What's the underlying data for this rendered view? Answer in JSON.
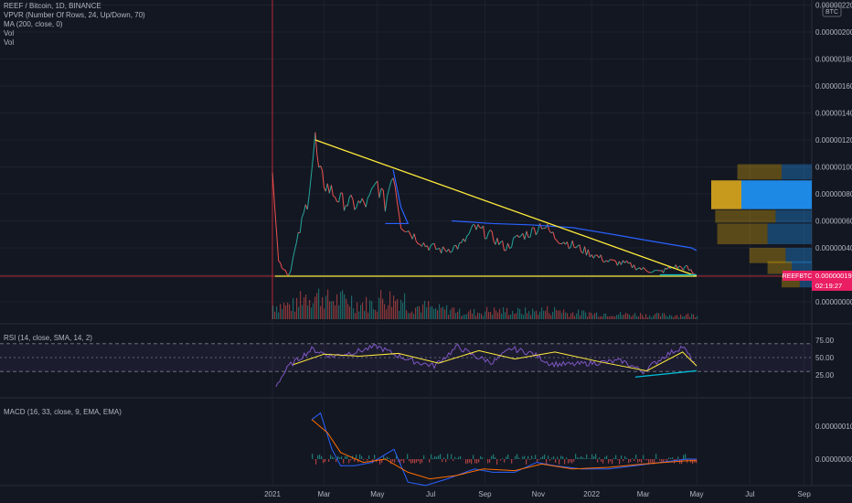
{
  "header": {
    "title": "REEF / Bitcoin, 1D, BINANCE",
    "indicators": [
      "VPVR (Number Of Rows, 24, Up/Down, 70)",
      "MA (200, close, 0)",
      "Vol",
      "Vol"
    ],
    "currency_badge": "BTC"
  },
  "price_panel": {
    "y_ticks": [
      "0.00000220",
      "0.00000200",
      "0.00000180",
      "0.00000160",
      "0.00000140",
      "0.00000120",
      "0.00000100",
      "0.00000080",
      "0.00000060",
      "0.00000040",
      "0.00000020",
      "0.00000000"
    ],
    "symbol_label": "REEFBTC",
    "last_price": "0.00000019",
    "countdown": "02:19:27"
  },
  "rsi_panel": {
    "label": "RSI (14, close, SMA, 14, 2)",
    "y_ticks": [
      "75.00",
      "50.00",
      "25.00"
    ]
  },
  "macd_panel": {
    "label": "MACD (16, 33, close, 9, EMA, EMA)",
    "y_ticks": [
      "0.00000010",
      "0.00000000"
    ]
  },
  "time_axis": {
    "labels": [
      "2021",
      "Mar",
      "May",
      "Jul",
      "Sep",
      "Nov",
      "2022",
      "Mar",
      "May",
      "Jul",
      "Sep"
    ]
  },
  "colors": {
    "background": "#131722",
    "grid": "#1e222d",
    "text": "#b2b5be",
    "up": "#26a69a",
    "down": "#ef5350",
    "trendline": "#ffeb3b",
    "ma": "#2962ff",
    "rsi": "#7e57c2",
    "rsi_ma": "#ffeb3b",
    "macd": "#2962ff",
    "signal": "#ff6d00",
    "divergence": "#00bcd4",
    "price_label": "#e91e63",
    "vpvr_poc_left": "#c79a1e",
    "vpvr_poc_right": "#1e88e5"
  },
  "chart_data": [
    {
      "type": "line",
      "title": "REEF / Bitcoin, 1D, BINANCE",
      "series": [
        {
          "name": "REEFBTC",
          "x": [
            "2021-01-01",
            "2021-01-08",
            "2021-01-20",
            "2021-02-10",
            "2021-02-19",
            "2021-02-23",
            "2021-03-05",
            "2021-03-20",
            "2021-04-05",
            "2021-04-20",
            "2021-05-01",
            "2021-05-10",
            "2021-05-19",
            "2021-05-28",
            "2021-06-10",
            "2021-06-25",
            "2021-07-15",
            "2021-08-05",
            "2021-08-20",
            "2021-09-05",
            "2021-09-25",
            "2021-10-10",
            "2021-10-25",
            "2021-11-05",
            "2021-11-20",
            "2021-12-10",
            "2021-12-30",
            "2022-01-20",
            "2022-02-10",
            "2022-03-01",
            "2022-03-20",
            "2022-04-05",
            "2022-04-20",
            "2022-05-01"
          ],
          "values": [
            1.05,
            0.3,
            0.2,
            0.75,
            1.2,
            0.95,
            0.85,
            0.75,
            0.72,
            0.73,
            0.88,
            0.72,
            0.98,
            0.58,
            0.5,
            0.42,
            0.38,
            0.42,
            0.55,
            0.5,
            0.4,
            0.48,
            0.52,
            0.58,
            0.48,
            0.42,
            0.36,
            0.3,
            0.28,
            0.24,
            0.22,
            0.26,
            0.25,
            0.19
          ]
        },
        {
          "name": "MA (200, close, 0)",
          "x": [
            "2021-07-25",
            "2021-09-10",
            "2021-10-25",
            "2021-12-10",
            "2022-01-25",
            "2022-03-10",
            "2022-04-25",
            "2022-05-01"
          ],
          "values": [
            0.6,
            0.58,
            0.57,
            0.55,
            0.5,
            0.45,
            0.4,
            0.38
          ]
        }
      ],
      "trendlines": [
        {
          "x": [
            "2021-02-19",
            "2022-05-01"
          ],
          "values": [
            1.2,
            0.19
          ]
        },
        {
          "x": [
            "2021-01-04",
            "2022-05-01"
          ],
          "values": [
            0.19,
            0.19
          ]
        }
      ],
      "ylim": [
        0,
        2.2
      ],
      "y_units": "1e-6 BTC"
    },
    {
      "type": "bar",
      "title": "Vol",
      "categories": [
        "2021-01",
        "2021-02",
        "2021-03",
        "2021-04",
        "2021-05",
        "2021-06",
        "2021-07",
        "2021-08",
        "2021-09",
        "2021-10",
        "2021-11",
        "2021-12",
        "2022-01",
        "2022-02",
        "2022-03",
        "2022-04"
      ],
      "values": [
        20,
        34,
        28,
        22,
        30,
        18,
        14,
        10,
        12,
        11,
        13,
        9,
        8,
        7,
        6,
        6
      ]
    },
    {
      "type": "bar",
      "title": "VPVR (Number Of Rows, 24, Up/Down, 70)",
      "series": [
        {
          "name": "up",
          "values": [
            0.0,
            0.22,
            0.15,
            0.3,
            0.25,
            0.18,
            0.12,
            0.09
          ]
        },
        {
          "name": "down",
          "values": [
            0.0,
            0.15,
            0.35,
            0.18,
            0.22,
            0.13,
            0.1,
            0.06
          ]
        }
      ],
      "categories": [
        "0.00000120",
        "0.00000100",
        "0.00000080",
        "0.00000060",
        "0.00000040",
        "0.00000020",
        "0.00000010",
        "0.00000000"
      ]
    },
    {
      "type": "line",
      "title": "RSI (14, close, SMA, 14, 2)",
      "series": [
        {
          "name": "RSI",
          "x": [
            "2021-01-05",
            "2021-01-20",
            "2021-02-15",
            "2021-03-10",
            "2021-04-05",
            "2021-05-01",
            "2021-05-20",
            "2021-06-10",
            "2021-07-05",
            "2021-08-01",
            "2021-08-20",
            "2021-09-10",
            "2021-10-01",
            "2021-10-25",
            "2021-11-15",
            "2021-12-10",
            "2022-01-10",
            "2022-02-05",
            "2022-03-01",
            "2022-03-25",
            "2022-04-15",
            "2022-05-01"
          ],
          "values": [
            10,
            38,
            62,
            52,
            58,
            66,
            55,
            45,
            38,
            66,
            52,
            43,
            63,
            56,
            41,
            40,
            43,
            45,
            30,
            52,
            66,
            37
          ]
        },
        {
          "name": "SMA",
          "x": [
            "2021-01-25",
            "2021-03-01",
            "2021-04-10",
            "2021-05-25",
            "2021-07-10",
            "2021-08-25",
            "2021-10-05",
            "2021-11-20",
            "2022-01-10",
            "2022-03-05",
            "2022-04-15",
            "2022-05-01"
          ],
          "values": [
            40,
            55,
            52,
            56,
            42,
            60,
            48,
            58,
            44,
            31,
            58,
            38
          ]
        }
      ],
      "divergence_line": {
        "x": [
          "2022-02-20",
          "2022-05-01"
        ],
        "values": [
          22,
          31
        ]
      },
      "ylim": [
        0,
        100
      ]
    },
    {
      "type": "line",
      "title": "MACD (16, 33, close, 9, EMA, EMA)",
      "series": [
        {
          "name": "MACD",
          "x": [
            "2021-02-15",
            "2021-02-25",
            "2021-03-10",
            "2021-03-20",
            "2021-04-05",
            "2021-04-25",
            "2021-05-20",
            "2021-06-05",
            "2021-06-25",
            "2021-07-20",
            "2021-08-20",
            "2021-09-10",
            "2021-10-05",
            "2021-10-30",
            "2021-11-20",
            "2021-12-20",
            "2022-01-20",
            "2022-02-20",
            "2022-03-20",
            "2022-04-20",
            "2022-05-01"
          ],
          "values": [
            0.12,
            0.14,
            0.03,
            -0.02,
            -0.02,
            -0.01,
            0.03,
            -0.07,
            -0.08,
            -0.06,
            -0.03,
            -0.04,
            -0.04,
            -0.01,
            -0.02,
            -0.03,
            -0.03,
            -0.02,
            -0.01,
            0.0,
            0.0
          ]
        },
        {
          "name": "Signal",
          "x": [
            "2021-02-15",
            "2021-03-05",
            "2021-03-20",
            "2021-04-15",
            "2021-05-10",
            "2021-06-05",
            "2021-06-30",
            "2021-07-30",
            "2021-08-30",
            "2021-10-05",
            "2021-11-05",
            "2021-12-10",
            "2022-01-20",
            "2022-03-01",
            "2022-04-20",
            "2022-05-01"
          ],
          "values": [
            0.12,
            0.08,
            0.02,
            -0.01,
            0.0,
            -0.04,
            -0.06,
            -0.05,
            -0.03,
            -0.035,
            -0.015,
            -0.03,
            -0.025,
            -0.015,
            -0.005,
            -0.005
          ]
        }
      ],
      "ylim": [
        -0.12,
        0.17
      ],
      "y_units": "1e-6 BTC"
    }
  ]
}
